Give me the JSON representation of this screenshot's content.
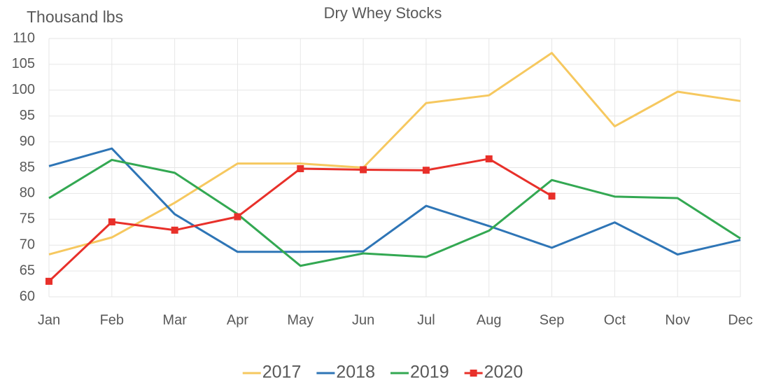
{
  "chart_data": {
    "type": "line",
    "title": "Dry Whey Stocks",
    "y_label": "Thousand lbs",
    "categories": [
      "Jan",
      "Feb",
      "Mar",
      "Apr",
      "May",
      "Jun",
      "Jul",
      "Aug",
      "Sep",
      "Oct",
      "Nov",
      "Dec"
    ],
    "series": [
      {
        "name": "2017",
        "color": "#f6c85f",
        "values": [
          68.2,
          71.5,
          78.2,
          85.8,
          85.8,
          85.0,
          97.5,
          99.0,
          107.2,
          93.0,
          99.7,
          97.9
        ]
      },
      {
        "name": "2018",
        "color": "#2e75b6",
        "values": [
          85.3,
          88.7,
          76.0,
          68.7,
          68.7,
          68.8,
          77.6,
          73.7,
          69.5,
          74.4,
          68.2,
          71.0
        ]
      },
      {
        "name": "2019",
        "color": "#33a852",
        "values": [
          79.1,
          86.5,
          84.0,
          76.0,
          66.0,
          68.4,
          67.7,
          72.8,
          82.6,
          79.4,
          79.1,
          71.3
        ]
      },
      {
        "name": "2020",
        "color": "#e8302a",
        "marker": "square",
        "values": [
          63.0,
          74.5,
          72.9,
          75.5,
          84.8,
          84.6,
          84.5,
          86.7,
          79.5,
          null,
          null,
          null
        ]
      }
    ],
    "ylim": [
      60,
      110
    ],
    "yticks": [
      60,
      65,
      70,
      75,
      80,
      85,
      90,
      95,
      100,
      105,
      110
    ],
    "grid": true,
    "legend": "bottom"
  }
}
